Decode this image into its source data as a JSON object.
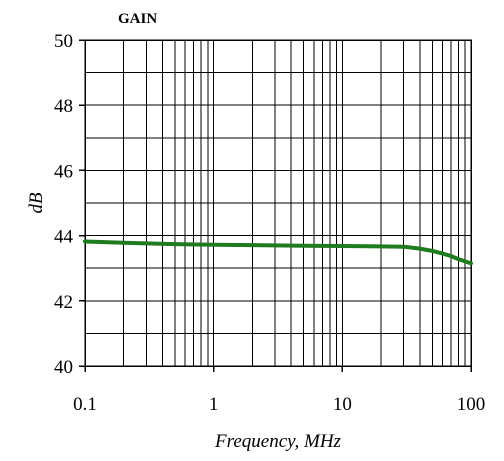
{
  "chart_data": {
    "type": "line",
    "title": "GAIN",
    "xlabel": "Frequency, MHz",
    "ylabel": "dB",
    "xscale": "log",
    "xlim": [
      0.1,
      100
    ],
    "ylim": [
      40,
      50
    ],
    "x_ticks": [
      0.1,
      1,
      10,
      100
    ],
    "x_tick_labels": [
      "0.1",
      "1",
      "10",
      "100"
    ],
    "y_ticks": [
      40,
      42,
      44,
      46,
      48,
      50
    ],
    "y_tick_labels": [
      "40",
      "42",
      "44",
      "46",
      "48",
      "50"
    ],
    "grid": true,
    "series": [
      {
        "color": "#1e7b1e",
        "x": [
          0.1,
          0.2,
          0.5,
          1,
          2,
          5,
          10,
          20,
          30,
          40,
          50,
          60,
          70,
          80,
          90,
          100
        ],
        "y": [
          43.82,
          43.78,
          43.74,
          43.72,
          43.71,
          43.69,
          43.68,
          43.67,
          43.66,
          43.6,
          43.53,
          43.45,
          43.37,
          43.28,
          43.21,
          43.15
        ]
      }
    ]
  }
}
